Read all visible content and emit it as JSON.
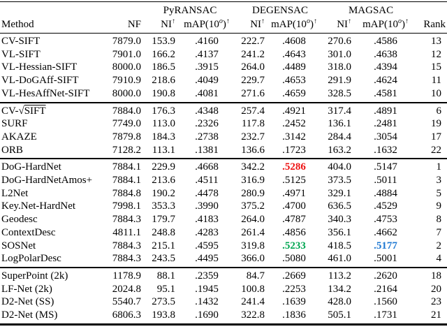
{
  "colors": {
    "red": "#ee1111",
    "green": "#00a651",
    "blue": "#1e78d2"
  },
  "table": {
    "col_groups": {
      "pyransac": "PyRANSAC",
      "degensac": "DEGENSAC",
      "magsac": "MAGSAC"
    },
    "headers": {
      "method": "Method",
      "nf": "NF",
      "ni": "NI",
      "map_pre": "mAP(10",
      "map_sup": "o",
      "map_post": ")",
      "arrow": "↑",
      "rank": "Rank"
    },
    "groups": [
      {
        "rows": [
          {
            "method": "CV-SIFT",
            "nf": "7879.0",
            "ni_py": "153.9",
            "map_py": ".4160",
            "ni_deg": "222.7",
            "map_deg": ".4608",
            "ni_mag": "270.6",
            "map_mag": ".4586",
            "rank": "13"
          },
          {
            "method": "VL-SIFT",
            "nf": "7901.0",
            "ni_py": "166.2",
            "map_py": ".4137",
            "ni_deg": "241.2",
            "map_deg": ".4643",
            "ni_mag": "301.0",
            "map_mag": ".4638",
            "rank": "12"
          },
          {
            "method": "VL-Hessian-SIFT",
            "nf": "8000.0",
            "ni_py": "186.5",
            "map_py": ".3915",
            "ni_deg": "264.0",
            "map_deg": ".4489",
            "ni_mag": "318.0",
            "map_mag": ".4394",
            "rank": "15"
          },
          {
            "method": "VL-DoGAff-SIFT",
            "nf": "7910.9",
            "ni_py": "218.6",
            "map_py": ".4049",
            "ni_deg": "229.7",
            "map_deg": ".4653",
            "ni_mag": "291.9",
            "map_mag": ".4624",
            "rank": "11"
          },
          {
            "method": "VL-HesAffNet-SIFT",
            "nf": "8000.0",
            "ni_py": "190.8",
            "map_py": ".4081",
            "ni_deg": "271.6",
            "map_deg": ".4659",
            "ni_mag": "328.5",
            "map_mag": ".4581",
            "rank": "10"
          }
        ]
      },
      {
        "rows": [
          {
            "method": "CV-√SIFT",
            "sqrt": {
              "prefix": "CV-",
              "radical": "√",
              "arg": "SIFT"
            },
            "nf": "7884.0",
            "ni_py": "176.3",
            "map_py": ".4348",
            "ni_deg": "257.4",
            "map_deg": ".4921",
            "ni_mag": "317.4",
            "map_mag": ".4891",
            "rank": "6"
          },
          {
            "method": "SURF",
            "nf": "7749.0",
            "ni_py": "113.0",
            "map_py": ".2326",
            "ni_deg": "117.8",
            "map_deg": ".2452",
            "ni_mag": "136.1",
            "map_mag": ".2481",
            "rank": "19"
          },
          {
            "method": "AKAZE",
            "nf": "7879.8",
            "ni_py": "184.3",
            "map_py": ".2738",
            "ni_deg": "232.7",
            "map_deg": ".3142",
            "ni_mag": "284.4",
            "map_mag": ".3054",
            "rank": "17"
          },
          {
            "method": "ORB",
            "nf": "7128.2",
            "ni_py": "113.1",
            "map_py": ".1381",
            "ni_deg": "136.6",
            "map_deg": ".1723",
            "ni_mag": "163.2",
            "map_mag": ".1632",
            "rank": "22"
          }
        ]
      },
      {
        "rows": [
          {
            "method": "DoG-HardNet",
            "nf": "7884.1",
            "ni_py": "229.9",
            "map_py": ".4668",
            "ni_deg": "342.2",
            "map_deg": ".5286",
            "ni_mag": "404.0",
            "map_mag": ".5147",
            "rank": "1",
            "hl": {
              "map_deg": "red"
            }
          },
          {
            "method": "DoG-HardNetAmos+",
            "nf": "7884.1",
            "ni_py": "213.6",
            "map_py": ".4511",
            "ni_deg": "316.9",
            "map_deg": ".5125",
            "ni_mag": "373.5",
            "map_mag": ".5011",
            "rank": "3"
          },
          {
            "method": "L2Net",
            "nf": "7884.8",
            "ni_py": "190.2",
            "map_py": ".4478",
            "ni_deg": "280.9",
            "map_deg": ".4971",
            "ni_mag": "329.1",
            "map_mag": ".4884",
            "rank": "5"
          },
          {
            "method": "Key.Net-HardNet",
            "nf": "7998.1",
            "ni_py": "353.3",
            "map_py": ".3990",
            "ni_deg": "375.2",
            "map_deg": ".4700",
            "ni_mag": "636.5",
            "map_mag": ".4529",
            "rank": "9"
          },
          {
            "method": "Geodesc",
            "nf": "7884.3",
            "ni_py": "179.7",
            "map_py": ".4183",
            "ni_deg": "264.0",
            "map_deg": ".4787",
            "ni_mag": "340.3",
            "map_mag": ".4753",
            "rank": "8"
          },
          {
            "method": "ContextDesc",
            "nf": "4811.1",
            "ni_py": "248.8",
            "map_py": ".4283",
            "ni_deg": "261.4",
            "map_deg": ".4856",
            "ni_mag": "356.1",
            "map_mag": ".4662",
            "rank": "7"
          },
          {
            "method": "SOSNet",
            "nf": "7884.3",
            "ni_py": "215.1",
            "map_py": ".4595",
            "ni_deg": "319.8",
            "map_deg": ".5233",
            "ni_mag": "418.5",
            "map_mag": ".5177",
            "rank": "2",
            "hl": {
              "map_deg": "green",
              "map_mag": "blue"
            }
          },
          {
            "method": "LogPolarDesc",
            "nf": "7884.3",
            "ni_py": "243.5",
            "map_py": ".4495",
            "ni_deg": "366.0",
            "map_deg": ".5080",
            "ni_mag": "461.0",
            "map_mag": ".5001",
            "rank": "4"
          }
        ]
      },
      {
        "rows": [
          {
            "method": "SuperPoint (2k)",
            "nf": "1178.9",
            "ni_py": "88.1",
            "map_py": ".2359",
            "ni_deg": "84.7",
            "map_deg": ".2669",
            "ni_mag": "113.2",
            "map_mag": ".2620",
            "rank": "18"
          },
          {
            "method": "LF-Net (2k)",
            "nf": "2024.8",
            "ni_py": "95.1",
            "map_py": ".1945",
            "ni_deg": "100.8",
            "map_deg": ".2253",
            "ni_mag": "134.2",
            "map_mag": ".2164",
            "rank": "20"
          },
          {
            "method": "D2-Net (SS)",
            "nf": "5540.7",
            "ni_py": "273.5",
            "map_py": ".1432",
            "ni_deg": "241.4",
            "map_deg": ".1639",
            "ni_mag": "428.0",
            "map_mag": ".1560",
            "rank": "23"
          },
          {
            "method": "D2-Net (MS)",
            "nf": "6806.3",
            "ni_py": "193.8",
            "map_py": ".1690",
            "ni_deg": "322.8",
            "map_deg": ".1836",
            "ni_mag": "505.1",
            "map_mag": ".1731",
            "rank": "21"
          }
        ]
      }
    ]
  }
}
